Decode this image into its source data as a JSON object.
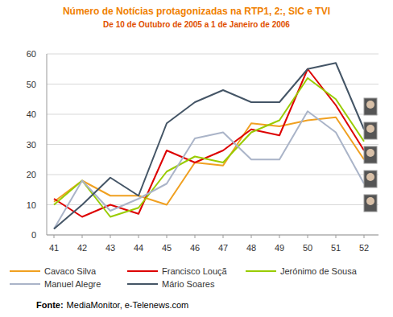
{
  "chart_data": {
    "type": "line",
    "title": "Número de Notícias protagonizadas na RTP1, 2:, SIC e TVI",
    "subtitle": "De 10 de Outubro de 2005 a 1 de Janeiro de 2006",
    "categories": [
      "41",
      "42",
      "43",
      "44",
      "45",
      "46",
      "47",
      "48",
      "49",
      "50",
      "51",
      "52"
    ],
    "series": [
      {
        "name": "Cavaco Silva",
        "color": "#f0a020",
        "values": [
          11,
          18,
          13,
          13,
          10,
          24,
          23,
          37,
          36,
          38,
          39,
          25
        ]
      },
      {
        "name": "Francisco Louçã",
        "color": "#dd0000",
        "values": [
          12,
          6,
          10,
          7,
          28,
          24,
          28,
          35,
          33,
          55,
          43,
          28
        ]
      },
      {
        "name": "Jerónimo de Sousa",
        "color": "#99cc00",
        "values": [
          10,
          18,
          6,
          9,
          21,
          26,
          24,
          34,
          38,
          52,
          45,
          31
        ]
      },
      {
        "name": "Manuel Alegre",
        "color": "#aab4c8",
        "values": [
          2,
          18,
          8,
          12,
          17,
          32,
          34,
          25,
          25,
          41,
          34,
          17
        ]
      },
      {
        "name": "Mário Soares",
        "color": "#445566",
        "values": [
          2,
          10,
          19,
          13,
          37,
          44,
          48,
          44,
          44,
          55,
          57,
          35
        ]
      }
    ],
    "ylim": [
      0,
      60
    ],
    "yticks": [
      0,
      10,
      20,
      30,
      40,
      50,
      60
    ],
    "grid": true,
    "legend": "bottom",
    "source_label": "Fonte:",
    "source": "MediaMonitor, e-Telenews.com"
  }
}
